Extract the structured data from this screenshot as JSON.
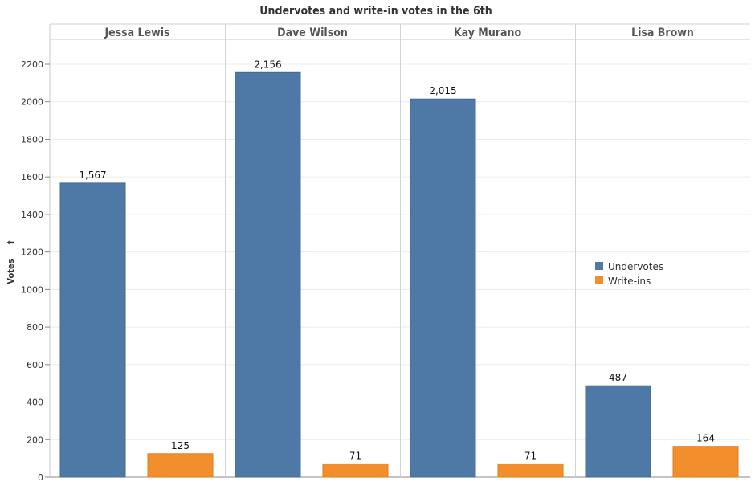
{
  "chart_data": {
    "type": "bar",
    "title": "Undervotes and write-in votes in the 6th",
    "categories": [
      "Jessa Lewis",
      "Dave Wilson",
      "Kay Murano",
      "Lisa Brown"
    ],
    "series": [
      {
        "name": "Undervotes",
        "color": "#4e79a7",
        "values": [
          1567,
          2156,
          2015,
          487
        ],
        "labels": [
          "1,567",
          "2,156",
          "2,015",
          "487"
        ]
      },
      {
        "name": "Write-ins",
        "color": "#f28e2b",
        "values": [
          125,
          71,
          71,
          164
        ],
        "labels": [
          "125",
          "71",
          "71",
          "164"
        ]
      }
    ],
    "ylabel": "Votes",
    "ylabel_icon": "sort-icon",
    "yticks": [
      0,
      200,
      400,
      600,
      800,
      1000,
      1200,
      1400,
      1600,
      1800,
      2000,
      2200
    ],
    "ylim": [
      0,
      2200
    ],
    "grid": true,
    "legend_placement": "right"
  }
}
